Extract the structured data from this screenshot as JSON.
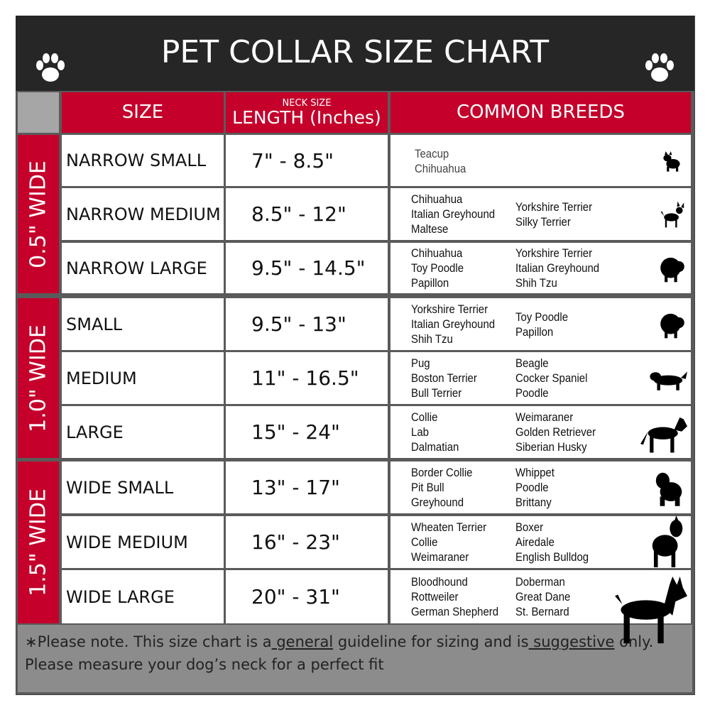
{
  "title": "PET COLLAR SIZE CHART",
  "headers": {
    "size": "SIZE",
    "neck_small": "NECK SIZE",
    "length": "LENGTH (Inches)",
    "breeds": "COMMON BREEDS"
  },
  "groups": [
    "0.5\" WIDE",
    "1.0\" WIDE",
    "1.5\" WIDE"
  ],
  "rows": [
    {
      "size": "NARROW SMALL",
      "length": "7\" - 8.5\"",
      "col1": [
        "Teacup",
        "Chihuahua"
      ],
      "col2": [],
      "dog": "yorkie-icon"
    },
    {
      "size": "NARROW MEDIUM",
      "length": "8.5\" - 12\"",
      "col1": [
        "Chihuahua",
        "Italian Greyhound",
        "Maltese"
      ],
      "col2": [
        "Yorkshire Terrier",
        "Silky Terrier"
      ],
      "dog": "chihuahua-icon"
    },
    {
      "size": "NARROW LARGE",
      "length": "9.5\" - 14.5\"",
      "col1": [
        "Chihuahua",
        "Toy Poodle",
        "Papillon"
      ],
      "col2": [
        "Yorkshire Terrier",
        "Italian Greyhound",
        "Shih Tzu"
      ],
      "dog": "pomeranian-icon"
    },
    {
      "size": "SMALL",
      "length": "9.5\" - 13\"",
      "col1": [
        "Yorkshire Terrier",
        "Italian Greyhound",
        "Shih Tzu"
      ],
      "col2": [
        "Toy Poodle",
        "Papillon"
      ],
      "dog": "pomeranian-icon"
    },
    {
      "size": "MEDIUM",
      "length": "11\" - 16.5\"",
      "col1": [
        "Pug",
        "Boston Terrier",
        "Bull Terrier"
      ],
      "col2": [
        "Beagle",
        "Cocker Spaniel",
        "Poodle"
      ],
      "dog": "dachshund-icon"
    },
    {
      "size": "LARGE",
      "length": "15\" - 24\"",
      "col1": [
        "Collie",
        "Lab",
        "Dalmatian"
      ],
      "col2": [
        "Weimaraner",
        "Golden Retriever",
        "Siberian Husky"
      ],
      "dog": "shepherd-icon"
    },
    {
      "size": "WIDE SMALL",
      "length": "13\" - 17\"",
      "col1": [
        "Border Collie",
        "Pit Bull",
        "Greyhound"
      ],
      "col2": [
        "Whippet",
        "Poodle",
        "Brittany"
      ],
      "dog": "bulldog-icon"
    },
    {
      "size": "WIDE MEDIUM",
      "length": "16\" - 23\"",
      "col1": [
        "Wheaten Terrier",
        "Collie",
        "Weimaraner"
      ],
      "col2": [
        "Boxer",
        "Airedale",
        "English Bulldog"
      ],
      "dog": "pitbull-icon"
    },
    {
      "size": "WIDE LARGE",
      "length": "20\" - 31\"",
      "col1": [
        "Bloodhound",
        "Rottweiler",
        "German Shepherd"
      ],
      "col2": [
        "Doberman",
        "Great Dane",
        "St. Bernard"
      ],
      "dog": "doberman-icon"
    }
  ],
  "footer": {
    "p1": "∗Please note. This size chart is a",
    "u1": " general",
    "p2": " guideline for sizing and is",
    "u2": " suggestive",
    "p3": " only.",
    "line2": "Please measure your dog’s neck for a perfect fit"
  },
  "colors": {
    "header": "#262626",
    "accent": "#c4002b",
    "footer": "#8c8c8c"
  }
}
